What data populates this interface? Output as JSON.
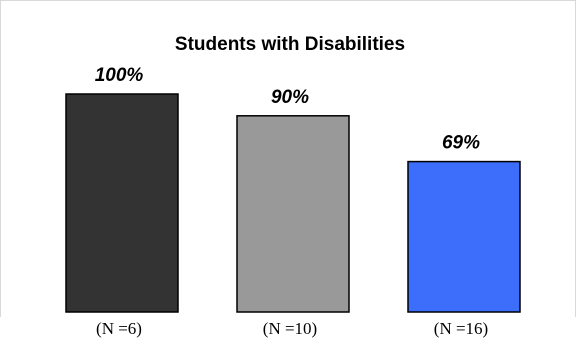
{
  "chart_data": {
    "type": "bar",
    "title": "Students with Disabilities",
    "categories": [
      "(N =6)",
      "(N =10)",
      "(N =16)"
    ],
    "values": [
      100,
      90,
      69
    ],
    "data_labels": [
      "100%",
      "90%",
      "69%"
    ],
    "colors": [
      "#333333",
      "#999999",
      "#3d6dfb"
    ],
    "ylim": [
      0,
      100
    ],
    "grid": false,
    "legend": "none"
  }
}
